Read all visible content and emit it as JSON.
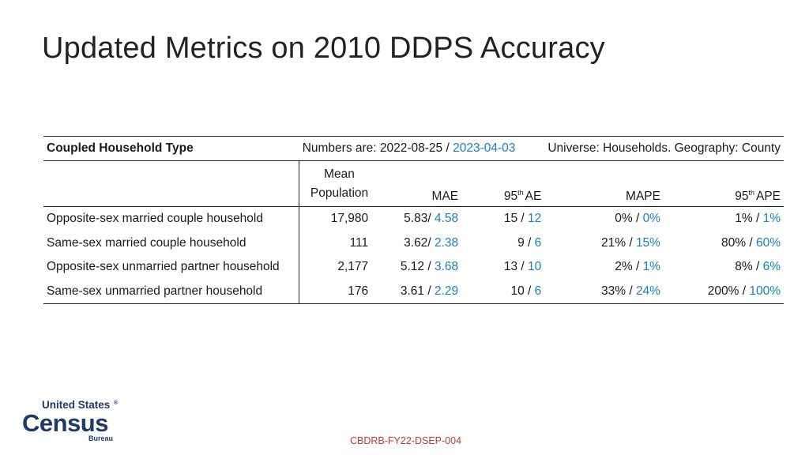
{
  "title": "Updated Metrics on 2010 DDPS Accuracy",
  "table": {
    "top": {
      "type_label": "Coupled Household Type",
      "numbers_prefix": "Numbers are: 2022-08-25 / ",
      "numbers_date_new": "2023-04-03",
      "universe": "Universe: Households. Geography: County"
    },
    "headers": {
      "mean_line1": "Mean",
      "mean_line2": "Population",
      "mae": "MAE",
      "ae95_prefix": "95",
      "ae95_sup": "th",
      "ae95_suffix": "AE",
      "mape": "MAPE",
      "ape95_prefix": "95",
      "ape95_sup": "th",
      "ape95_suffix": "APE"
    },
    "rows": [
      {
        "type": "Opposite-sex married couple household",
        "mean": "17,980",
        "mae_old": "5.83/ ",
        "mae_new": "4.58",
        "ae_old": "15 / ",
        "ae_new": "12",
        "mape_old": "0% / ",
        "mape_new": "0%",
        "ape_old": "1% / ",
        "ape_new": "1%"
      },
      {
        "type": "Same-sex married couple household",
        "mean": "111",
        "mae_old": "3.62/ ",
        "mae_new": "2.38",
        "ae_old": "9 / ",
        "ae_new": "6",
        "mape_old": "21% / ",
        "mape_new": "15%",
        "ape_old": "80% / ",
        "ape_new": "60%"
      },
      {
        "type": "Opposite-sex unmarried partner household",
        "mean": "2,177",
        "mae_old": "5.12 / ",
        "mae_new": "3.68",
        "ae_old": "13 / ",
        "ae_new": "10",
        "mape_old": "2% / ",
        "mape_new": "1%",
        "ape_old": "8% / ",
        "ape_new": "6%"
      },
      {
        "type": "Same-sex unmarried partner household",
        "mean": "176",
        "mae_old": "3.61 / ",
        "mae_new": "2.29",
        "ae_old": "10 / ",
        "ae_new": "6",
        "mape_old": "33% / ",
        "mape_new": "24%",
        "ape_old": "200% / ",
        "ape_new": "100%"
      }
    ]
  },
  "logo": {
    "line1": "United States",
    "registered": "®",
    "line2": "Census",
    "line3": "Bureau"
  },
  "footer_code": "CBDRB-FY22-DSEP-004",
  "colors": {
    "new_value": "#1a7ec8",
    "logo_navy": "#1f3a68",
    "footer": "#c0392b"
  }
}
